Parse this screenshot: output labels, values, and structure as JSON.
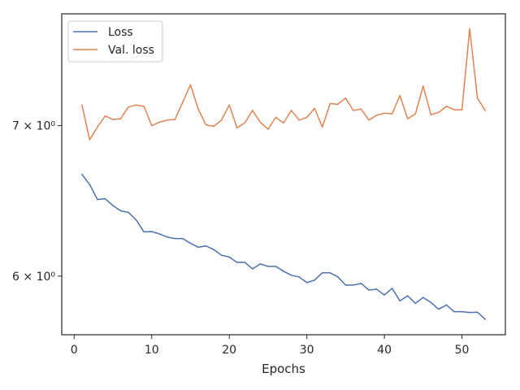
{
  "chart_data": {
    "type": "line",
    "xlabel": "Epochs",
    "ylabel": "",
    "yscale": "log",
    "xlim": [
      -1.6,
      55.6
    ],
    "ylim": [
      5.65,
      7.85
    ],
    "xticks": [
      0,
      10,
      20,
      30,
      40,
      50
    ],
    "yticks": [
      {
        "value": 6,
        "label": "6 × 10⁰"
      },
      {
        "value": 7,
        "label": "7 × 10⁰"
      }
    ],
    "grid": false,
    "legend_position": "top-left",
    "x": [
      1,
      2,
      3,
      4,
      5,
      6,
      7,
      8,
      9,
      10,
      11,
      12,
      13,
      14,
      15,
      16,
      17,
      18,
      19,
      20,
      21,
      22,
      23,
      24,
      25,
      26,
      27,
      28,
      29,
      30,
      31,
      32,
      33,
      34,
      35,
      36,
      37,
      38,
      39,
      40,
      41,
      42,
      43,
      44,
      45,
      46,
      47,
      48,
      49,
      50,
      51,
      52,
      53
    ],
    "series": [
      {
        "name": "Loss",
        "color": "#4c72b0",
        "values": [
          6.66,
          6.59,
          6.49,
          6.495,
          6.45,
          6.415,
          6.405,
          6.355,
          6.278,
          6.28,
          6.265,
          6.245,
          6.235,
          6.235,
          6.205,
          6.18,
          6.188,
          6.165,
          6.13,
          6.118,
          6.085,
          6.085,
          6.045,
          6.075,
          6.06,
          6.06,
          6.03,
          6.005,
          5.995,
          5.96,
          5.975,
          6.02,
          6.02,
          5.995,
          5.945,
          5.945,
          5.955,
          5.915,
          5.92,
          5.885,
          5.925,
          5.85,
          5.88,
          5.835,
          5.87,
          5.84,
          5.8,
          5.825,
          5.785,
          5.785,
          5.78,
          5.782,
          5.74
        ]
      },
      {
        "name": "Val. loss",
        "color": "#dd8452",
        "values": [
          7.15,
          6.9,
          6.99,
          7.07,
          7.045,
          7.05,
          7.135,
          7.15,
          7.14,
          7.0,
          7.025,
          7.04,
          7.045,
          7.17,
          7.3,
          7.12,
          7.005,
          6.995,
          7.04,
          7.15,
          6.985,
          7.02,
          7.11,
          7.025,
          6.975,
          7.06,
          7.02,
          7.11,
          7.04,
          7.06,
          7.125,
          6.99,
          7.16,
          7.155,
          7.2,
          7.11,
          7.12,
          7.04,
          7.075,
          7.09,
          7.085,
          7.22,
          7.05,
          7.085,
          7.29,
          7.08,
          7.095,
          7.14,
          7.115,
          7.115,
          7.73,
          7.2,
          7.11
        ]
      }
    ]
  }
}
